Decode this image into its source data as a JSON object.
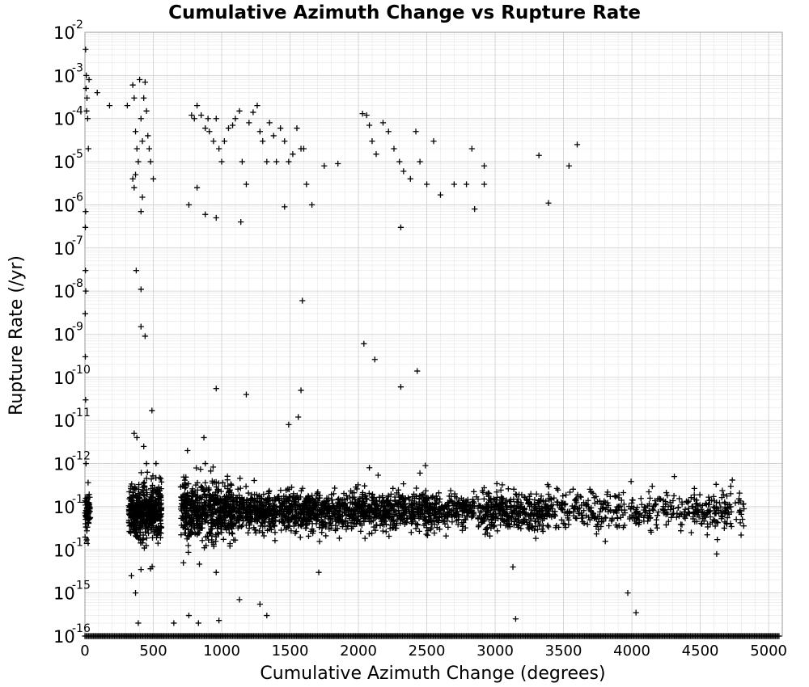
{
  "chart_data": {
    "type": "scatter",
    "title": "Cumulative Azimuth Change vs Rupture Rate",
    "xlabel": "Cumulative Azimuth Change (degrees)",
    "ylabel": "Rupture Rate (/yr)",
    "xlim": [
      0,
      5100
    ],
    "ylim": [
      1e-16,
      0.01
    ],
    "yscale": "log",
    "grid": true,
    "marker": "plus",
    "marker_color": "#000000",
    "x_ticks": [
      "0",
      "500",
      "1000",
      "1500",
      "2000",
      "2500",
      "3000",
      "3500",
      "4000",
      "4500",
      "5000"
    ],
    "y_ticks": [
      {
        "base": "10",
        "exp": "-16"
      },
      {
        "base": "10",
        "exp": "-15"
      },
      {
        "base": "10",
        "exp": "-14"
      },
      {
        "base": "10",
        "exp": "-13"
      },
      {
        "base": "10",
        "exp": "-12"
      },
      {
        "base": "10",
        "exp": "-11"
      },
      {
        "base": "10",
        "exp": "-10"
      },
      {
        "base": "10",
        "exp": "-9"
      },
      {
        "base": "10",
        "exp": "-8"
      },
      {
        "base": "10",
        "exp": "-7"
      },
      {
        "base": "10",
        "exp": "-6"
      },
      {
        "base": "10",
        "exp": "-5"
      },
      {
        "base": "10",
        "exp": "-4"
      },
      {
        "base": "10",
        "exp": "-3"
      },
      {
        "base": "10",
        "exp": "-2"
      }
    ],
    "series": [
      {
        "values": [
          [
            5,
            0.004
          ],
          [
            10,
            0.001
          ],
          [
            15,
            0.0003
          ],
          [
            20,
            0.0001
          ],
          [
            25,
            2e-05
          ],
          [
            30,
            0.0008
          ],
          [
            8,
            0.0005
          ],
          [
            12,
            0.00015
          ],
          [
            5,
            7e-07
          ],
          [
            3,
            3e-07
          ],
          [
            4,
            3e-08
          ],
          [
            6,
            1e-08
          ],
          [
            2,
            3e-09
          ],
          [
            3,
            3e-10
          ],
          [
            5,
            3e-11
          ],
          [
            8,
            1e-12
          ],
          [
            90,
            0.0004
          ],
          [
            180,
            0.0002
          ],
          [
            310,
            0.0002
          ],
          [
            350,
            0.0006
          ],
          [
            360,
            0.0003
          ],
          [
            370,
            5e-05
          ],
          [
            380,
            2e-05
          ],
          [
            390,
            1e-05
          ],
          [
            400,
            0.0008
          ],
          [
            410,
            0.0001
          ],
          [
            420,
            3e-05
          ],
          [
            430,
            0.0003
          ],
          [
            440,
            0.0007
          ],
          [
            450,
            0.00015
          ],
          [
            460,
            4e-05
          ],
          [
            470,
            2e-05
          ],
          [
            480,
            1e-05
          ],
          [
            500,
            4e-06
          ],
          [
            350,
            4e-06
          ],
          [
            360,
            2.5e-06
          ],
          [
            370,
            5e-06
          ],
          [
            420,
            1.5e-06
          ],
          [
            410,
            7e-07
          ],
          [
            375,
            3e-08
          ],
          [
            410,
            1.1e-08
          ],
          [
            410,
            1.5e-09
          ],
          [
            440,
            9e-10
          ],
          [
            490,
            1.7e-11
          ],
          [
            360,
            5e-12
          ],
          [
            380,
            4e-12
          ],
          [
            430,
            2.5e-12
          ],
          [
            520,
            1e-12
          ],
          [
            450,
            1e-12
          ],
          [
            780,
            0.00012
          ],
          [
            800,
            0.0001
          ],
          [
            820,
            0.0002
          ],
          [
            850,
            0.00012
          ],
          [
            880,
            6e-05
          ],
          [
            900,
            0.0001
          ],
          [
            910,
            5e-05
          ],
          [
            940,
            3e-05
          ],
          [
            960,
            0.0001
          ],
          [
            980,
            2e-05
          ],
          [
            1000,
            1e-05
          ],
          [
            1020,
            3e-05
          ],
          [
            1050,
            6e-05
          ],
          [
            1080,
            7e-05
          ],
          [
            1100,
            0.0001
          ],
          [
            1130,
            0.00015
          ],
          [
            1150,
            1e-05
          ],
          [
            1180,
            3e-06
          ],
          [
            1200,
            8e-05
          ],
          [
            1230,
            0.00014
          ],
          [
            1260,
            0.0002
          ],
          [
            1280,
            5e-05
          ],
          [
            1300,
            3e-05
          ],
          [
            1330,
            1e-05
          ],
          [
            1350,
            8e-05
          ],
          [
            1380,
            4e-05
          ],
          [
            1400,
            1e-05
          ],
          [
            1430,
            6e-05
          ],
          [
            1460,
            3e-05
          ],
          [
            1490,
            1e-05
          ],
          [
            1520,
            1.5e-05
          ],
          [
            1550,
            6e-05
          ],
          [
            1580,
            2e-05
          ],
          [
            1600,
            2e-05
          ],
          [
            1620,
            3e-06
          ],
          [
            1660,
            1e-06
          ],
          [
            760,
            1e-06
          ],
          [
            820,
            2.5e-06
          ],
          [
            880,
            6e-07
          ],
          [
            960,
            5e-07
          ],
          [
            1140,
            4e-07
          ],
          [
            1460,
            9e-07
          ],
          [
            1590,
            6e-09
          ],
          [
            960,
            5.5e-11
          ],
          [
            1180,
            4e-11
          ],
          [
            1580,
            5e-11
          ],
          [
            1490,
            8e-12
          ],
          [
            1560,
            1.2e-11
          ],
          [
            870,
            4e-12
          ],
          [
            750,
            2e-12
          ],
          [
            880,
            1e-12
          ],
          [
            2030,
            0.00013
          ],
          [
            2060,
            0.00012
          ],
          [
            2080,
            7e-05
          ],
          [
            2100,
            3e-05
          ],
          [
            2130,
            1.5e-05
          ],
          [
            2180,
            8e-05
          ],
          [
            2220,
            5e-05
          ],
          [
            2260,
            2e-05
          ],
          [
            2300,
            1e-05
          ],
          [
            2330,
            6e-06
          ],
          [
            2380,
            4e-06
          ],
          [
            2420,
            5e-05
          ],
          [
            2450,
            1e-05
          ],
          [
            2500,
            3e-06
          ],
          [
            2550,
            3e-05
          ],
          [
            2600,
            1.7e-06
          ],
          [
            2700,
            3e-06
          ],
          [
            2790,
            3e-06
          ],
          [
            2830,
            2e-05
          ],
          [
            2850,
            8e-07
          ],
          [
            2920,
            3e-06
          ],
          [
            2920,
            8e-06
          ],
          [
            2310,
            3e-07
          ],
          [
            2040,
            6e-10
          ],
          [
            2120,
            2.6e-10
          ],
          [
            2430,
            1.4e-10
          ],
          [
            2310,
            6e-11
          ],
          [
            2080,
            8e-13
          ],
          [
            2450,
            6e-13
          ],
          [
            2490,
            9e-13
          ],
          [
            1750,
            8e-06
          ],
          [
            1850,
            9e-06
          ],
          [
            3320,
            1.4e-05
          ],
          [
            3540,
            8e-06
          ],
          [
            3600,
            2.5e-05
          ],
          [
            3390,
            1.1e-06
          ],
          [
            720,
            5e-15
          ],
          [
            960,
            3e-15
          ],
          [
            1130,
            7e-16
          ],
          [
            1280,
            5.5e-16
          ],
          [
            1330,
            3e-16
          ],
          [
            1710,
            3e-15
          ],
          [
            3130,
            4e-15
          ],
          [
            3150,
            2.5e-16
          ],
          [
            3970,
            1e-15
          ],
          [
            4030,
            3.5e-16
          ],
          [
            4620,
            8e-15
          ],
          [
            340,
            2.5e-15
          ],
          [
            370,
            1e-15
          ],
          [
            410,
            3.5e-15
          ],
          [
            650,
            2e-16
          ],
          [
            760,
            3e-16
          ],
          [
            980,
            2.3e-16
          ],
          [
            830,
            2e-16
          ],
          [
            390,
            2e-16
          ]
        ]
      }
    ],
    "dense_band": {
      "center": 8e-14,
      "x_range": [
        0,
        4830
      ],
      "clusters": [
        [
          0,
          40
        ],
        [
          320,
          560
        ],
        [
          700,
          1100
        ],
        [
          1100,
          1800
        ],
        [
          1800,
          2600
        ],
        [
          2600,
          3400
        ],
        [
          3400,
          4830
        ]
      ]
    },
    "floor_points": {
      "y": 1e-16,
      "x_range": [
        0,
        5080
      ]
    }
  }
}
